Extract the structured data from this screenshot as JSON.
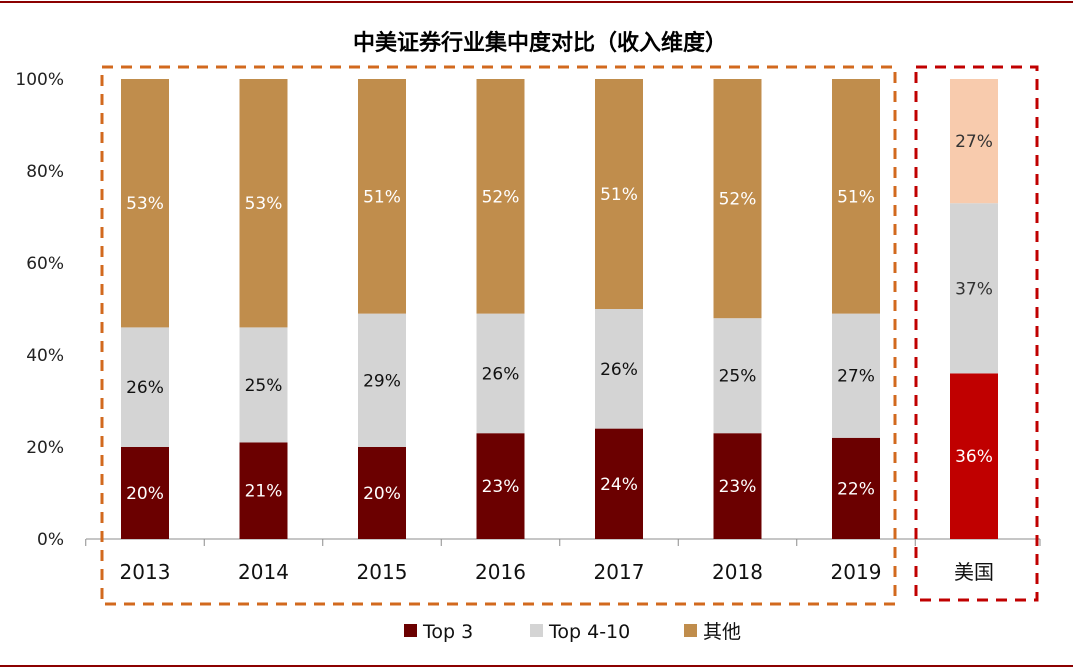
{
  "chart_data": {
    "type": "bar",
    "stacked": true,
    "title": "中美证券行业集中度对比（收入维度）",
    "xlabel": "",
    "ylabel": "",
    "ylim": [
      0,
      100
    ],
    "yticks": [
      "0%",
      "20%",
      "40%",
      "60%",
      "80%",
      "100%"
    ],
    "categories": [
      "2013",
      "2014",
      "2015",
      "2016",
      "2017",
      "2018",
      "2019"
    ],
    "series": [
      {
        "name": "Top 3",
        "color": "#6B0000",
        "values": [
          20,
          21,
          20,
          23,
          24,
          23,
          22
        ],
        "labels": [
          "20%",
          "21%",
          "20%",
          "23%",
          "24%",
          "23%",
          "22%"
        ]
      },
      {
        "name": "Top 4-10",
        "color": "#D4D4D4",
        "values": [
          26,
          25,
          29,
          26,
          26,
          25,
          27
        ],
        "labels": [
          "26%",
          "25%",
          "29%",
          "26%",
          "26%",
          "25%",
          "27%"
        ]
      },
      {
        "name": "其他",
        "color": "#C08D4C",
        "values": [
          53,
          53,
          51,
          52,
          51,
          52,
          51
        ],
        "labels": [
          "53%",
          "53%",
          "51%",
          "52%",
          "51%",
          "52%",
          "51%"
        ]
      }
    ],
    "comparison": {
      "category": "美国",
      "segments": [
        {
          "series": "Top 3",
          "value": 36,
          "label": "36%",
          "color": "#C00000"
        },
        {
          "series": "Top 4-10",
          "value": 37,
          "label": "37%",
          "color": "#D4D4D4"
        },
        {
          "series": "其他",
          "value": 27,
          "label": "27%",
          "color": "#F8CBAD"
        }
      ]
    },
    "legend": {
      "position": "bottom",
      "items": [
        "Top 3",
        "Top 4-10",
        "其他"
      ]
    },
    "frame_colors": {
      "china": "#D2691E",
      "us": "#C00000",
      "rule": "#8B0000"
    }
  }
}
